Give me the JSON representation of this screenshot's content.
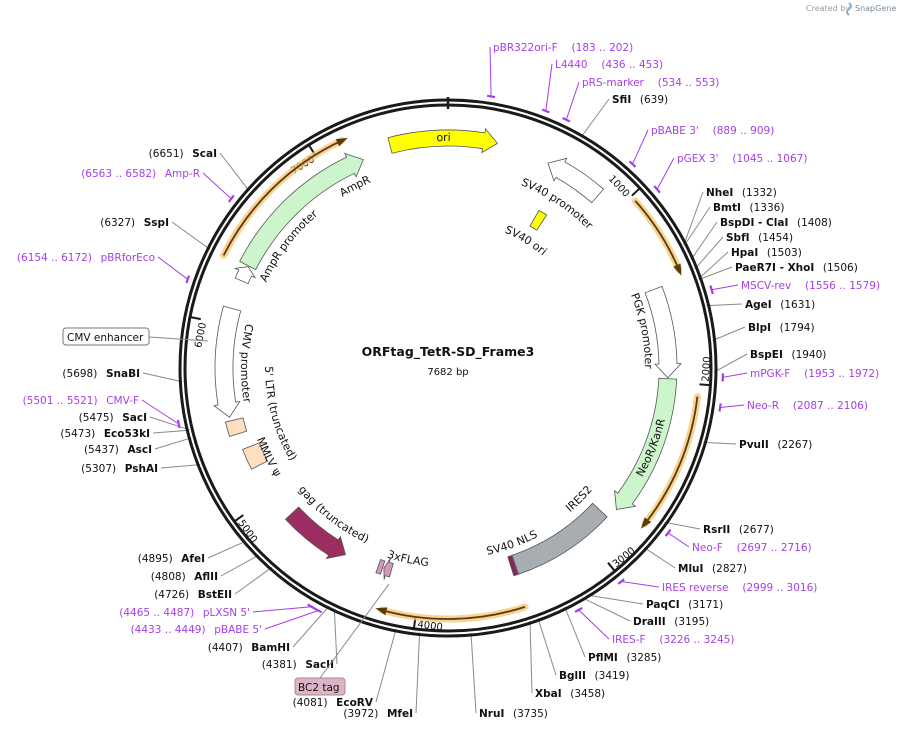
{
  "branding": {
    "created_by": "Created by",
    "app": "SnapGene"
  },
  "plasmid": {
    "name": "ORFtag_TetR-SD_Frame3",
    "length": 7682,
    "length_label": "7682 bp"
  },
  "ticks": [
    "1000",
    "2000",
    "3000",
    "4000",
    "5000",
    "6000",
    "7000"
  ],
  "colors": {
    "backbone": "#1a1a1a",
    "primer": "#a63ee8",
    "enzyme_line": "#8a8a8a",
    "orf": "#f5c46e"
  },
  "features": [
    {
      "name": "ori",
      "start": 7370,
      "end": 265,
      "direction": "forward",
      "color": "#ffff00"
    },
    {
      "name": "SV40 promoter",
      "start": 555,
      "end": 875,
      "direction": "reverse",
      "color": "#ffffff"
    },
    {
      "name": "SV40 ori",
      "start": 640,
      "end": 700,
      "direction": "none",
      "color": "#ffff00"
    },
    {
      "name": "AmpR promoter",
      "start": 6250,
      "end": 6335,
      "direction": "forward",
      "color": "#ffffff"
    },
    {
      "name": "AmpR",
      "start": 6340,
      "end": 7210,
      "direction": "forward",
      "color": "#ccf5cc"
    },
    {
      "name": "PGK promoter",
      "start": 1475,
      "end": 1975,
      "direction": "forward",
      "color": "#ffffff"
    },
    {
      "name": "NeoR/KanR",
      "start": 1980,
      "end": 2775,
      "direction": "forward",
      "color": "#ccf5cc"
    },
    {
      "name": "IRES2",
      "start": 2840,
      "end": 3438,
      "direction": "none",
      "color": "#a8adb2"
    },
    {
      "name": "SV40 NLS",
      "start": 3442,
      "end": 3466,
      "direction": "none",
      "color": "#8b2257"
    },
    {
      "name": "3xFLAG",
      "start": 4175,
      "end": 4220,
      "direction": "forward",
      "color": "#d09ab8"
    },
    {
      "name": "BC2 tag",
      "start": 4228,
      "end": 4255,
      "direction": "none",
      "color": "#d09ab8"
    },
    {
      "name": "gag (truncated)",
      "start": 4455,
      "end": 4845,
      "direction": "reverse",
      "color": "#9b2d62"
    },
    {
      "name": "MMLV ψ",
      "start": 5180,
      "end": 5300,
      "direction": "none",
      "color": "#ffdfbf"
    },
    {
      "name": "5' LTR (truncated)",
      "start": 5390,
      "end": 5470,
      "direction": "none",
      "color": "#ffdfbf"
    },
    {
      "name": "CMV promoter",
      "start": 5490,
      "end": 6090,
      "direction": "reverse",
      "color": "#ffffff"
    }
  ],
  "callouts": {
    "cmv_enhancer": "CMV enhancer",
    "bc2_tag": "BC2 tag"
  },
  "orfs": [
    {
      "start": 6330,
      "end": 7180,
      "direction": "forward"
    },
    {
      "start": 1030,
      "end": 1460,
      "direction": "forward"
    },
    {
      "start": 2060,
      "end": 2770,
      "direction": "forward"
    },
    {
      "start": 3460,
      "end": 4200,
      "direction": "forward"
    }
  ],
  "enzymes": [
    {
      "name": "SfiI",
      "position": 639
    },
    {
      "name": "NheI",
      "position": 1332
    },
    {
      "name": "BmtI",
      "position": 1336
    },
    {
      "name": "BspDI - ClaI",
      "position": 1408
    },
    {
      "name": "SbfI",
      "position": 1454
    },
    {
      "name": "HpaI",
      "position": 1503
    },
    {
      "name": "PaeR7I - XhoI",
      "position": 1506
    },
    {
      "name": "AgeI",
      "position": 1631
    },
    {
      "name": "BlpI",
      "position": 1794
    },
    {
      "name": "BspEI",
      "position": 1940
    },
    {
      "name": "PvuII",
      "position": 2267
    },
    {
      "name": "RsrII",
      "position": 2677
    },
    {
      "name": "MluI",
      "position": 2827
    },
    {
      "name": "PaqCI",
      "position": 3171
    },
    {
      "name": "DraIII",
      "position": 3195
    },
    {
      "name": "PflMI",
      "position": 3285
    },
    {
      "name": "BglII",
      "position": 3419
    },
    {
      "name": "XbaI",
      "position": 3458
    },
    {
      "name": "NruI",
      "position": 3735
    },
    {
      "name": "MfeI",
      "position": 3972
    },
    {
      "name": "EcoRV",
      "position": 4081
    },
    {
      "name": "SacII",
      "position": 4381
    },
    {
      "name": "BamHI",
      "position": 4407
    },
    {
      "name": "AfeI",
      "position": 4895
    },
    {
      "name": "AflII",
      "position": 4808
    },
    {
      "name": "BstEII",
      "position": 4726
    },
    {
      "name": "PshAI",
      "position": 5307
    },
    {
      "name": "AscI",
      "position": 5437
    },
    {
      "name": "Eco53kI",
      "position": 5473
    },
    {
      "name": "SacI",
      "position": 5475
    },
    {
      "name": "SnaBI",
      "position": 5698
    },
    {
      "name": "SspI",
      "position": 6327
    },
    {
      "name": "ScaI",
      "position": 6651
    }
  ],
  "primers": [
    {
      "name": "pBR322ori-F",
      "start": 183,
      "end": 202
    },
    {
      "name": "L4440",
      "start": 436,
      "end": 453
    },
    {
      "name": "pRS-marker",
      "start": 534,
      "end": 553
    },
    {
      "name": "pBABE 3'",
      "start": 889,
      "end": 909
    },
    {
      "name": "pGEX 3'",
      "start": 1045,
      "end": 1067
    },
    {
      "name": "MSCV-rev",
      "start": 1556,
      "end": 1579
    },
    {
      "name": "mPGK-F",
      "start": 1953,
      "end": 1972
    },
    {
      "name": "Neo-R",
      "start": 2087,
      "end": 2106
    },
    {
      "name": "Neo-F",
      "start": 2697,
      "end": 2716
    },
    {
      "name": "IRES reverse",
      "start": 2999,
      "end": 3016
    },
    {
      "name": "IRES-F",
      "start": 3226,
      "end": 3245
    },
    {
      "name": "pBABE 5'",
      "start": 4433,
      "end": 4449
    },
    {
      "name": "pLXSN 5'",
      "start": 4465,
      "end": 4487
    },
    {
      "name": "CMV-F",
      "start": 5501,
      "end": 5521
    },
    {
      "name": "pBRforEco",
      "start": 6154,
      "end": 6172
    },
    {
      "name": "Amp-R",
      "start": 6563,
      "end": 6582
    }
  ]
}
